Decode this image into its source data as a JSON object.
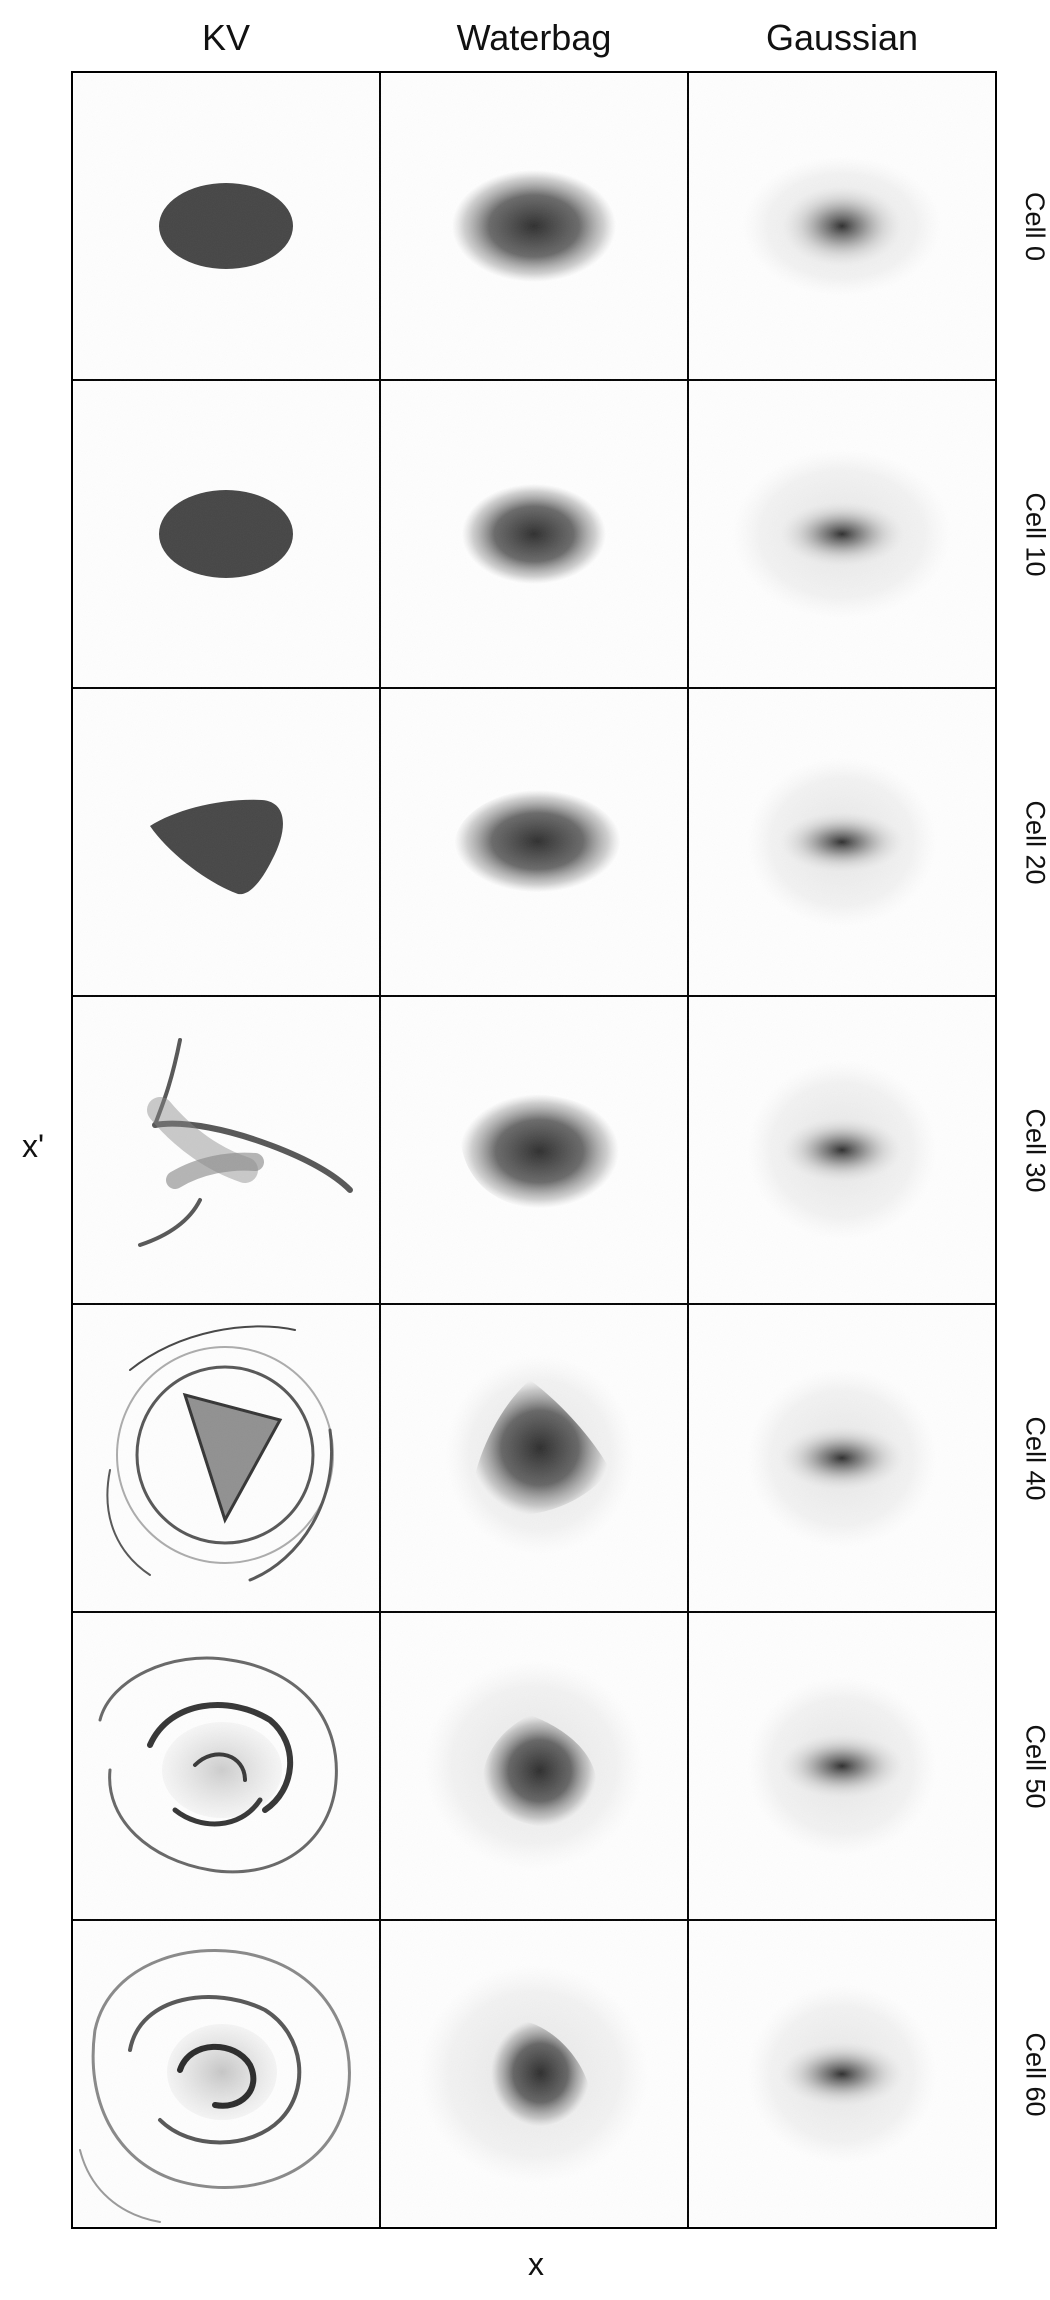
{
  "columns": [
    "KV",
    "Waterbag",
    "Gaussian"
  ],
  "rows": [
    "Cell 0",
    "Cell 10",
    "Cell 20",
    "Cell 30",
    "Cell 40",
    "Cell 50",
    "Cell 60"
  ],
  "axis": {
    "x": "x",
    "y": "x'"
  },
  "colors": {
    "ink": "#222222",
    "border": "#000000",
    "background": "#ffffff"
  }
}
